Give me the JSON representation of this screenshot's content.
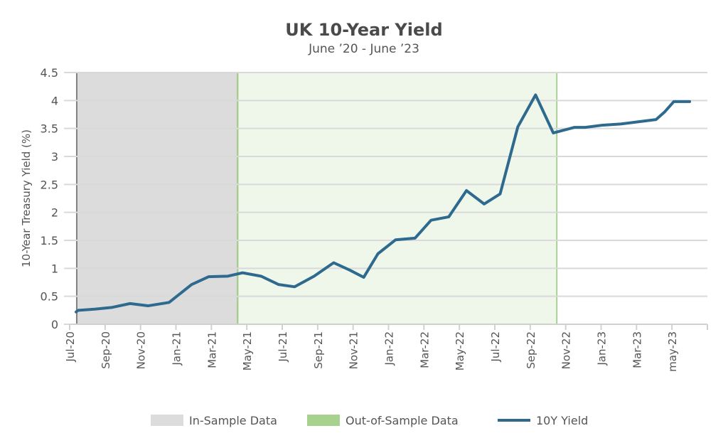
{
  "chart_data": {
    "type": "line",
    "title": "UK 10-Year Yield",
    "subtitle": "June ’20 - June ’23",
    "ylabel": "10-Year Treasury Yield (%)",
    "xlabel": "",
    "ylim": [
      0,
      4.5
    ],
    "yticks": [
      "0",
      "0.5",
      "1",
      "1.5",
      "2",
      "2.5",
      "3",
      "3.5",
      "4",
      "4.5"
    ],
    "xlim_months": [
      0,
      36
    ],
    "xticks": [
      "Jul-20",
      "Sep-20",
      "Nov-20",
      "Jan-21",
      "Mar-21",
      "May-21",
      "Jul-21",
      "Sep-21",
      "Nov-21",
      "Jan-22",
      "Mar-22",
      "May-22",
      "Jul-22",
      "Sep-22",
      "Nov-22",
      "Jan-23",
      "Mar-23",
      "may-23"
    ],
    "grid": true,
    "legend_position": "bottom",
    "regions": [
      {
        "name": "In-Sample Data",
        "from_month": 0.4,
        "to_month": 9.48,
        "color": "#dcdcdc",
        "border": "#808080"
      },
      {
        "name": "Out-of-Sample Data",
        "from_month": 9.48,
        "to_month": 27.5,
        "color": "#eff6ea",
        "border": "#a9d18e"
      }
    ],
    "series": [
      {
        "name": "10Y Yield",
        "color": "#2e6a8e",
        "x_months": [
          0.36,
          0.48,
          0.49,
          1.41,
          2.36,
          3.41,
          4.42,
          5.61,
          6.88,
          7.84,
          8.93,
          9.76,
          10.8,
          11.8,
          12.7,
          13.8,
          14.9,
          15.8,
          16.6,
          17.4,
          18.4,
          19.5,
          20.4,
          21.4,
          22.4,
          23.4,
          24.3,
          25.3,
          26.3,
          27.3,
          28.5,
          29.1,
          30.1,
          31.1,
          32.1,
          33.1,
          33.6,
          34.1,
          35.0
        ],
        "y": [
          0.22,
          0.25,
          0.25,
          0.27,
          0.3,
          0.37,
          0.33,
          0.39,
          0.71,
          0.85,
          0.86,
          0.92,
          0.86,
          0.71,
          0.67,
          0.86,
          1.1,
          0.97,
          0.84,
          1.26,
          1.51,
          1.54,
          1.86,
          1.92,
          2.39,
          2.15,
          2.33,
          3.53,
          4.1,
          3.42,
          3.52,
          3.52,
          3.56,
          3.58,
          3.62,
          3.66,
          3.8,
          3.98,
          3.98
        ]
      }
    ]
  }
}
